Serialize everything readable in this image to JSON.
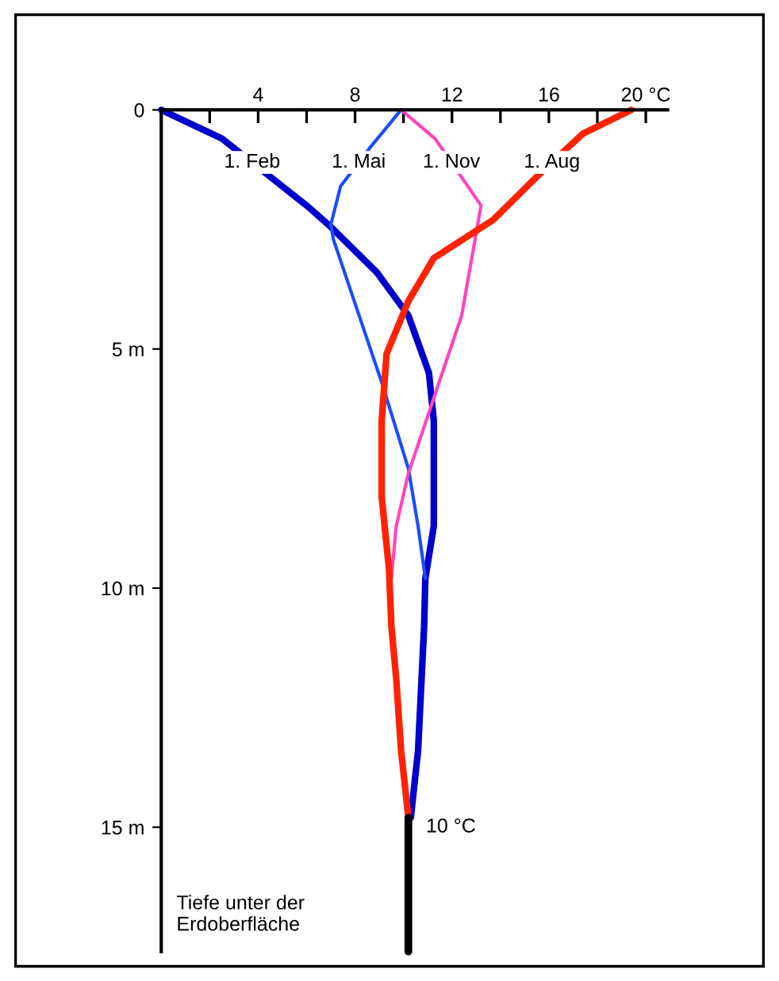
{
  "chart_data": {
    "type": "line",
    "xlim": [
      0,
      20.9
    ],
    "xticks": [
      {
        "value": 0,
        "label": null
      },
      {
        "value": 2,
        "label": null
      },
      4,
      {
        "value": 6,
        "label": null
      },
      8,
      {
        "value": 10,
        "label": null
      },
      12,
      {
        "value": 14,
        "label": null
      },
      16,
      {
        "value": 18,
        "label": null
      },
      {
        "value": 20,
        "label": "20 °C"
      }
    ],
    "ylim": [
      17.6,
      0
    ],
    "yticks": [
      0,
      {
        "value": 5,
        "label": "5 m"
      },
      {
        "value": 10,
        "label": "10 m"
      },
      {
        "value": 15,
        "label": "15 m"
      }
    ],
    "grid": false,
    "legend": false,
    "marker": "none",
    "line_style": "solid",
    "series": [
      {
        "name": "1. Feb",
        "color": "#0000cc",
        "x": [
          0,
          2.5,
          4.5,
          6.0,
          6.9,
          8.9,
          10.2,
          11.05,
          11.25,
          11.25,
          10.9,
          10.85,
          10.6,
          10.3
        ],
        "values": [
          0,
          0.6,
          1.4,
          2.0,
          2.4,
          3.4,
          4.3,
          5.5,
          6.5,
          8.7,
          9.8,
          10.8,
          13.4,
          14.8
        ]
      },
      {
        "name": "1. Mai",
        "color": "#1a4dff",
        "x": [
          9.9,
          8.6,
          7.4,
          7.0,
          7.1,
          9.1,
          10.2,
          10.6,
          10.9
        ],
        "values": [
          0,
          0.8,
          1.6,
          2.4,
          2.7,
          5.7,
          7.5,
          8.7,
          9.8
        ]
      },
      {
        "name": "1. Nov",
        "color": "#ff44bb",
        "x": [
          9.9,
          11.3,
          13.2,
          12.4,
          11.2,
          10.2,
          9.7,
          9.5
        ],
        "values": [
          0,
          0.6,
          2.0,
          4.3,
          6.1,
          7.6,
          8.7,
          9.8
        ]
      },
      {
        "name": "1. Aug",
        "color": "#ff2200",
        "x": [
          19.4,
          17.4,
          15.7,
          13.7,
          11.25,
          10.2,
          9.3,
          9.1,
          9.1,
          9.4,
          9.5,
          9.7,
          9.9,
          10.2
        ],
        "values": [
          0,
          0.5,
          1.3,
          2.3,
          3.1,
          4.0,
          5.1,
          6.5,
          8.1,
          9.6,
          10.8,
          11.9,
          13.4,
          14.8
        ]
      },
      {
        "color": "#000000",
        "x": [
          10.2,
          10.2
        ],
        "values": [
          14.8,
          17.6
        ]
      }
    ],
    "annotations": [
      {
        "text": "10 °C",
        "x": 10.2,
        "y": 15
      },
      "Tiefe unter der\nErdoberfläche"
    ]
  }
}
